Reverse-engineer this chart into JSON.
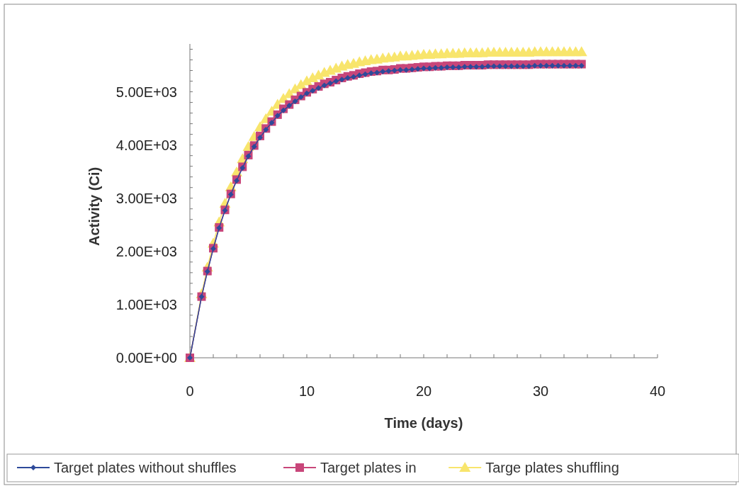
{
  "chart_data": {
    "type": "line",
    "xlabel": "Time (days)",
    "ylabel": "Activity (Ci)",
    "x": [
      0,
      1,
      1.5,
      2,
      2.5,
      3,
      3.5,
      4,
      4.5,
      5,
      5.5,
      6,
      6.5,
      7,
      7.5,
      8,
      8.5,
      9,
      9.5,
      10,
      10.5,
      11,
      11.5,
      12,
      12.5,
      13,
      13.5,
      14,
      14.5,
      15,
      15.5,
      16,
      16.5,
      17,
      17.5,
      18,
      18.5,
      19,
      19.5,
      20,
      20.5,
      21,
      21.5,
      22,
      22.5,
      23,
      23.5,
      24,
      24.5,
      25,
      25.5,
      26,
      26.5,
      27,
      27.5,
      28,
      28.5,
      29,
      29.5,
      30,
      30.5,
      31,
      31.5,
      32,
      32.5,
      33,
      33.5
    ],
    "series": [
      {
        "name": "Target plates without shuffles",
        "color": "#2e4a9a",
        "marker": "diamond",
        "values": [
          0,
          1150,
          1620,
          2050,
          2440,
          2770,
          3070,
          3330,
          3570,
          3790,
          3970,
          4140,
          4290,
          4420,
          4550,
          4650,
          4740,
          4820,
          4900,
          4970,
          5020,
          5070,
          5120,
          5160,
          5200,
          5230,
          5260,
          5280,
          5310,
          5330,
          5350,
          5360,
          5380,
          5390,
          5400,
          5410,
          5410,
          5420,
          5430,
          5440,
          5440,
          5450,
          5450,
          5460,
          5460,
          5460,
          5470,
          5470,
          5470,
          5470,
          5480,
          5480,
          5480,
          5480,
          5480,
          5480,
          5480,
          5480,
          5490,
          5490,
          5490,
          5490,
          5490,
          5490,
          5490,
          5490,
          5490
        ]
      },
      {
        "name": "Target plates in",
        "color": "#c8467a",
        "marker": "square",
        "values": [
          0,
          1150,
          1630,
          2060,
          2450,
          2780,
          3080,
          3350,
          3590,
          3810,
          3990,
          4170,
          4310,
          4440,
          4570,
          4680,
          4760,
          4850,
          4920,
          4990,
          5050,
          5100,
          5150,
          5180,
          5220,
          5260,
          5290,
          5310,
          5340,
          5360,
          5380,
          5390,
          5410,
          5410,
          5420,
          5440,
          5440,
          5450,
          5460,
          5470,
          5470,
          5480,
          5480,
          5490,
          5490,
          5490,
          5500,
          5500,
          5500,
          5500,
          5510,
          5510,
          5510,
          5510,
          5510,
          5510,
          5510,
          5510,
          5520,
          5520,
          5520,
          5520,
          5520,
          5520,
          5520,
          5520,
          5520
        ]
      },
      {
        "name": "Targe plates shuffling",
        "color": "#f8e56c",
        "marker": "triangle",
        "values": [
          0,
          1200,
          1700,
          2150,
          2550,
          2900,
          3210,
          3490,
          3740,
          3970,
          4160,
          4340,
          4490,
          4630,
          4760,
          4870,
          4960,
          5050,
          5130,
          5200,
          5260,
          5310,
          5360,
          5400,
          5440,
          5480,
          5510,
          5530,
          5560,
          5580,
          5600,
          5610,
          5630,
          5640,
          5650,
          5670,
          5670,
          5680,
          5690,
          5700,
          5700,
          5710,
          5710,
          5720,
          5720,
          5720,
          5730,
          5730,
          5730,
          5730,
          5740,
          5740,
          5740,
          5740,
          5740,
          5740,
          5740,
          5740,
          5750,
          5750,
          5750,
          5750,
          5750,
          5750,
          5750,
          5750,
          5750
        ]
      }
    ],
    "xlim": [
      0,
      40
    ],
    "xticks": [
      0,
      {
        "value": 2,
        "label": null
      },
      {
        "value": 4,
        "label": null
      },
      {
        "value": 6,
        "label": null
      },
      {
        "value": 8,
        "label": null
      },
      10,
      {
        "value": 12,
        "label": null
      },
      {
        "value": 14,
        "label": null
      },
      {
        "value": 16,
        "label": null
      },
      {
        "value": 18,
        "label": null
      },
      20,
      {
        "value": 22,
        "label": null
      },
      {
        "value": 24,
        "label": null
      },
      {
        "value": 26,
        "label": null
      },
      {
        "value": 28,
        "label": null
      },
      30,
      {
        "value": 32,
        "label": null
      },
      {
        "value": 34,
        "label": null
      },
      {
        "value": 36,
        "label": null
      },
      {
        "value": 38,
        "label": null
      },
      40
    ],
    "ylim": [
      0,
      5900
    ],
    "yticks": [
      {
        "value": 0,
        "label": "0.00E+00"
      },
      {
        "value": 200,
        "label": null
      },
      {
        "value": 400,
        "label": null
      },
      {
        "value": 600,
        "label": null
      },
      {
        "value": 800,
        "label": null
      },
      {
        "value": 1000,
        "label": "1.00E+03"
      },
      {
        "value": 1200,
        "label": null
      },
      {
        "value": 1400,
        "label": null
      },
      {
        "value": 1600,
        "label": null
      },
      {
        "value": 1800,
        "label": null
      },
      {
        "value": 2000,
        "label": "2.00E+03"
      },
      {
        "value": 2200,
        "label": null
      },
      {
        "value": 2400,
        "label": null
      },
      {
        "value": 2600,
        "label": null
      },
      {
        "value": 2800,
        "label": null
      },
      {
        "value": 3000,
        "label": "3.00E+03"
      },
      {
        "value": 3200,
        "label": null
      },
      {
        "value": 3400,
        "label": null
      },
      {
        "value": 3600,
        "label": null
      },
      {
        "value": 3800,
        "label": null
      },
      {
        "value": 4000,
        "label": "4.00E+03"
      },
      {
        "value": 4200,
        "label": null
      },
      {
        "value": 4400,
        "label": null
      },
      {
        "value": 4600,
        "label": null
      },
      {
        "value": 4800,
        "label": null
      },
      {
        "value": 5000,
        "label": "5.00E+03"
      },
      {
        "value": 5200,
        "label": null
      },
      {
        "value": 5400,
        "label": null
      },
      {
        "value": 5600,
        "label": null
      },
      {
        "value": 5800,
        "label": null
      }
    ],
    "grid": false,
    "legend": "bottom",
    "line_style": "solid"
  }
}
